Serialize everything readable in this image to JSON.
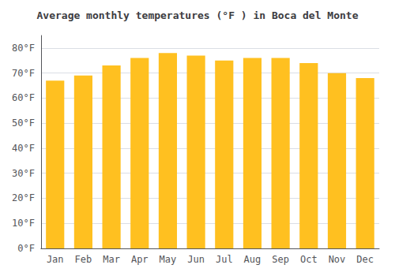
{
  "chart_data": {
    "type": "bar",
    "title": "Average monthly temperatures (°F ) in Boca del Monte",
    "categories": [
      "Jan",
      "Feb",
      "Mar",
      "Apr",
      "May",
      "Jun",
      "Jul",
      "Aug",
      "Sep",
      "Oct",
      "Nov",
      "Dec"
    ],
    "values": [
      67,
      69,
      73,
      76,
      78,
      77,
      75,
      76,
      76,
      74,
      70,
      68
    ],
    "color": "#FFC020",
    "ylim": [
      0,
      85
    ],
    "yticks": [
      {
        "value": 0,
        "label": "0°F"
      },
      {
        "value": 10,
        "label": "10°F"
      },
      {
        "value": 20,
        "label": "20°F"
      },
      {
        "value": 30,
        "label": "30°F"
      },
      {
        "value": 40,
        "label": "40°F"
      },
      {
        "value": 50,
        "label": "50°F"
      },
      {
        "value": 60,
        "label": "60°F"
      },
      {
        "value": 70,
        "label": "70°F"
      },
      {
        "value": 80,
        "label": "80°F"
      }
    ],
    "grid": true
  }
}
